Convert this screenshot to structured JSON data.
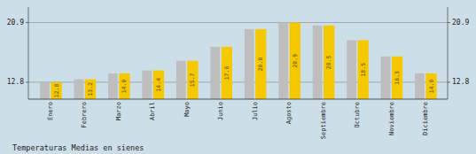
{
  "chart_data": {
    "type": "bar",
    "title": "Temperaturas Medias en sienes",
    "categories": [
      "Enero",
      "Febrero",
      "Marzo",
      "Abril",
      "Mayo",
      "Junio",
      "Julio",
      "Agosto",
      "Septiembre",
      "Octubre",
      "Noviembre",
      "Diciembre"
    ],
    "series": [
      {
        "color": "#BEBEBE",
        "values": [
          12.8,
          13.2,
          14.0,
          14.4,
          15.7,
          17.6,
          20.0,
          20.9,
          20.5,
          18.5,
          16.3,
          14.0
        ]
      },
      {
        "color": "#F5C800",
        "values": [
          12.8,
          13.2,
          14.0,
          14.4,
          15.7,
          17.6,
          20.0,
          20.9,
          20.5,
          18.5,
          16.3,
          14.0
        ],
        "data_labels": true,
        "value_labels": [
          "12.8",
          "13.2",
          "14.0",
          "14.4",
          "15.7",
          "17.6",
          "20.0",
          "20.9",
          "20.5",
          "18.5",
          "16.3",
          "14.0"
        ]
      }
    ],
    "ylim": [
      10.5,
      23.0
    ],
    "yticks": [
      12.8,
      20.9
    ],
    "y2lim": [
      10.5,
      23.0
    ],
    "y2ticks": [
      12.8,
      20.9
    ],
    "grid": true
  }
}
